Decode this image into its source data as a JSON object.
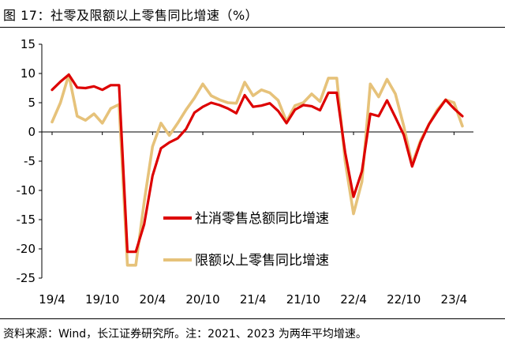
{
  "title": "图 17：社零及限额以上零售同比增速（%）",
  "source": "资料来源：Wind，长江证券研究所。注：2021、2023 为两年平均增速。",
  "colors": {
    "series1": "#DD0000",
    "series2": "#E6C27A"
  },
  "chart_data": {
    "type": "line",
    "yticks": [
      "15",
      "10",
      "5",
      "0",
      "-5",
      "-10",
      "-15",
      "-20",
      "-25"
    ],
    "ylim": [
      -25,
      15
    ],
    "xticks": [
      "19/4",
      "19/10",
      "20/4",
      "20/10",
      "21/4",
      "21/10",
      "22/4",
      "22/10",
      "23/4"
    ],
    "x": [
      "19/4",
      "19/5",
      "19/6",
      "19/7",
      "19/8",
      "19/9",
      "19/10",
      "19/11",
      "19/12",
      "20/1",
      "20/2",
      "20/3",
      "20/4",
      "20/5",
      "20/6",
      "20/7",
      "20/8",
      "20/9",
      "20/10",
      "20/11",
      "20/12",
      "21/1",
      "21/2",
      "21/3",
      "21/4",
      "21/5",
      "21/6",
      "21/7",
      "21/8",
      "21/9",
      "21/10",
      "21/11",
      "21/12",
      "22/1",
      "22/2",
      "22/3",
      "22/4",
      "22/5",
      "22/6",
      "22/7",
      "22/8",
      "22/9",
      "22/10",
      "22/11",
      "22/12",
      "23/1",
      "23/2",
      "23/3",
      "23/4",
      "23/5"
    ],
    "legend_position": "center-right",
    "grid": false,
    "series": [
      {
        "name": "社消零售总额同比增速",
        "values": [
          7.2,
          8.6,
          9.8,
          7.6,
          7.5,
          7.8,
          7.2,
          8.0,
          8.0,
          -20.5,
          -20.5,
          -15.8,
          -7.5,
          -2.8,
          -1.8,
          -1.1,
          0.5,
          3.3,
          4.3,
          5.0,
          4.6,
          4.0,
          3.2,
          6.3,
          4.3,
          4.5,
          4.9,
          3.6,
          1.5,
          3.8,
          4.6,
          4.4,
          3.7,
          6.7,
          6.7,
          -3.5,
          -11.1,
          -6.7,
          3.1,
          2.7,
          5.4,
          2.5,
          -0.5,
          -5.9,
          -1.8,
          1.3,
          3.5,
          5.5,
          4.0,
          2.7
        ]
      },
      {
        "name": "限额以上零售同比增速",
        "values": [
          1.7,
          5.0,
          9.8,
          2.7,
          2.0,
          3.1,
          1.5,
          4.0,
          4.7,
          -22.8,
          -22.8,
          -12.0,
          -2.5,
          1.5,
          -0.6,
          1.5,
          3.8,
          5.8,
          8.2,
          6.2,
          5.5,
          5.0,
          4.9,
          8.5,
          6.2,
          7.2,
          6.7,
          5.4,
          1.8,
          4.5,
          5.0,
          6.5,
          5.2,
          9.2,
          9.2,
          -5.0,
          -14.0,
          -8.5,
          8.2,
          6.0,
          9.0,
          6.5,
          1.0,
          -5.5,
          -1.5,
          1.3,
          3.8,
          5.5,
          5.0,
          1.0
        ]
      }
    ]
  }
}
